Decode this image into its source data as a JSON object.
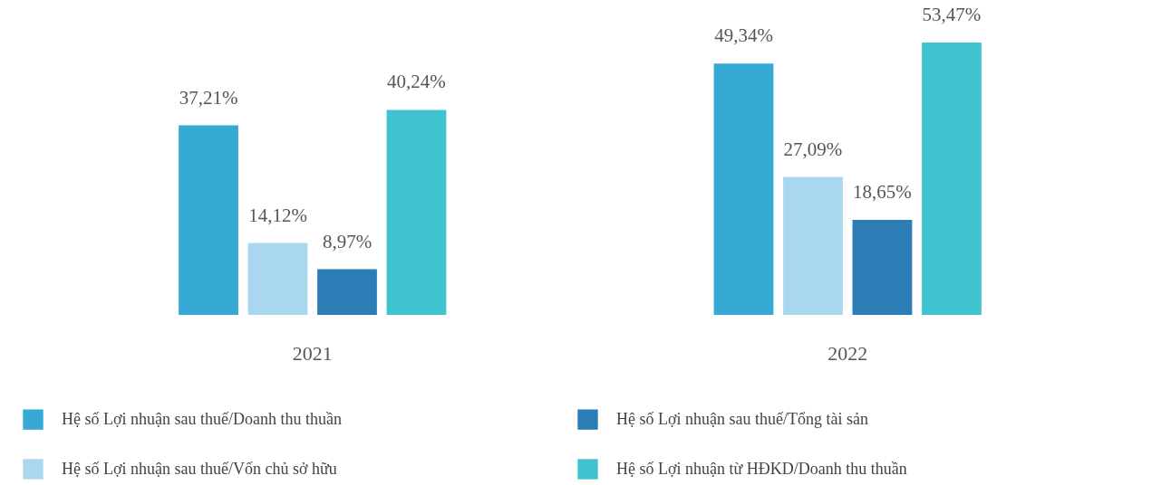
{
  "chart_data": {
    "type": "bar",
    "categories": [
      "2021",
      "2022"
    ],
    "series": [
      {
        "name": "Hệ số Lợi nhuận sau thuế/Doanh thu thuần",
        "color": "#36a9d4",
        "values": [
          37.21,
          49.34
        ],
        "value_labels": [
          "37,21%",
          "49,34%"
        ]
      },
      {
        "name": "Hệ số Lợi nhuận sau thuế/Vốn chủ sở hữu",
        "color": "#a8d7ef",
        "values": [
          14.12,
          27.09
        ],
        "value_labels": [
          "14,12%",
          "27,09%"
        ]
      },
      {
        "name": "Hệ số Lợi nhuận sau thuế/Tổng tài sản",
        "color": "#2c7db5",
        "values": [
          8.97,
          18.65
        ],
        "value_labels": [
          "8,97%",
          "18,65%"
        ]
      },
      {
        "name": "Hệ số Lợi nhuận từ HĐKD/Doanh thu thuần",
        "color": "#3ec3cf",
        "values": [
          40.24,
          53.47
        ],
        "value_labels": [
          "40,24%",
          "53,47%"
        ]
      }
    ],
    "tick_labels": "x",
    "legend": "bottom"
  }
}
